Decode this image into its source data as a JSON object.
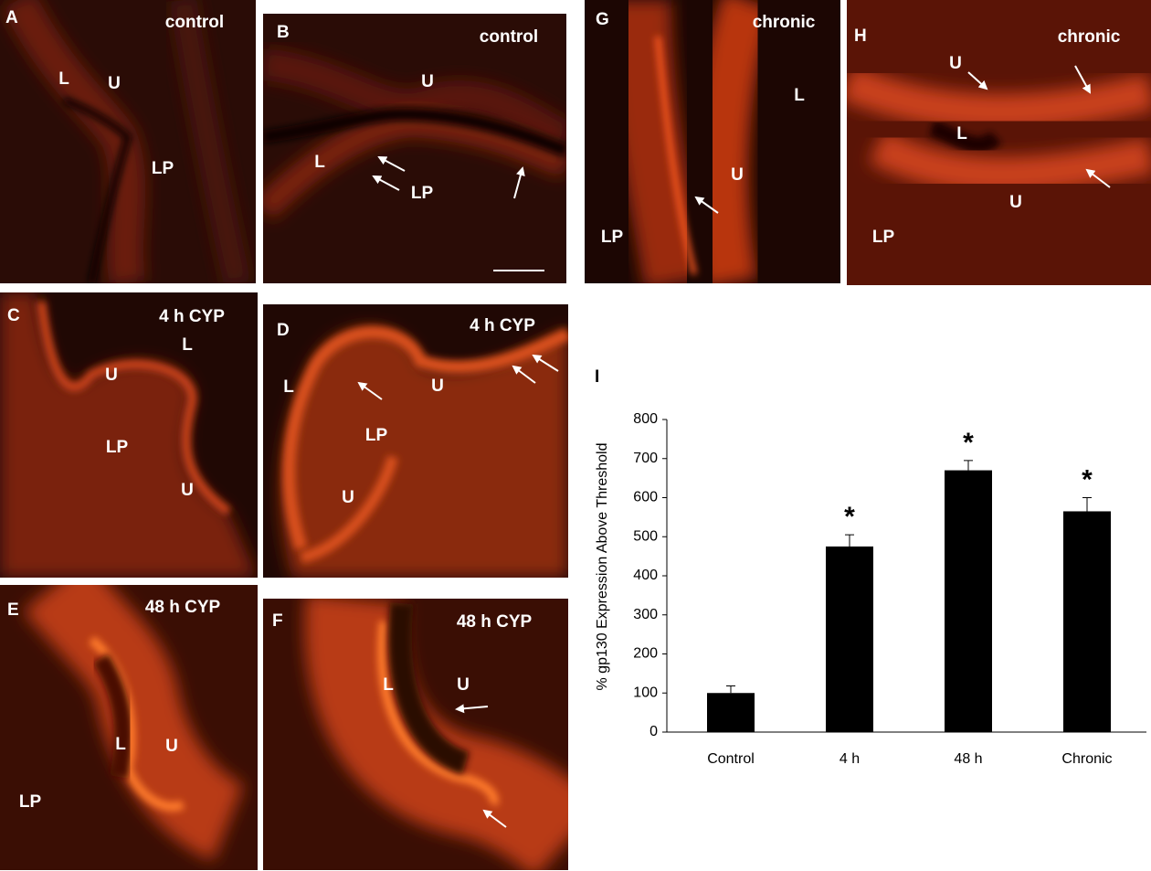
{
  "panels": [
    {
      "letter": "A",
      "condition": "control",
      "labels": [
        "L",
        "U",
        "LP"
      ]
    },
    {
      "letter": "B",
      "condition": "control",
      "labels": [
        "U",
        "L",
        "LP"
      ]
    },
    {
      "letter": "C",
      "condition": "4 h CYP",
      "labels": [
        "L",
        "U",
        "LP",
        "U"
      ]
    },
    {
      "letter": "D",
      "condition": "4 h CYP",
      "labels": [
        "L",
        "U",
        "LP",
        "U"
      ]
    },
    {
      "letter": "E",
      "condition": "48 h CYP",
      "labels": [
        "L",
        "U",
        "LP"
      ]
    },
    {
      "letter": "F",
      "condition": "48 h CYP",
      "labels": [
        "L",
        "U"
      ]
    },
    {
      "letter": "G",
      "condition": "chronic",
      "labels": [
        "L",
        "U",
        "LP"
      ]
    },
    {
      "letter": "H",
      "condition": "chronic",
      "labels": [
        "U",
        "L",
        "U",
        "LP"
      ]
    }
  ],
  "chart_panel": {
    "letter": "I"
  },
  "chart_data": {
    "type": "bar",
    "y_label": "% gp130 Expression Above Threshold",
    "categories": [
      "Control",
      "4 h",
      "48 h",
      "Chronic"
    ],
    "values": [
      100,
      475,
      670,
      565
    ],
    "errors": [
      18,
      30,
      25,
      35
    ],
    "significance": [
      null,
      "*",
      "*",
      "*"
    ],
    "color": "#000000",
    "ylim": [
      0,
      800
    ],
    "yticks": [
      0,
      100,
      200,
      300,
      400,
      500,
      600,
      700,
      800
    ],
    "grid": false
  }
}
